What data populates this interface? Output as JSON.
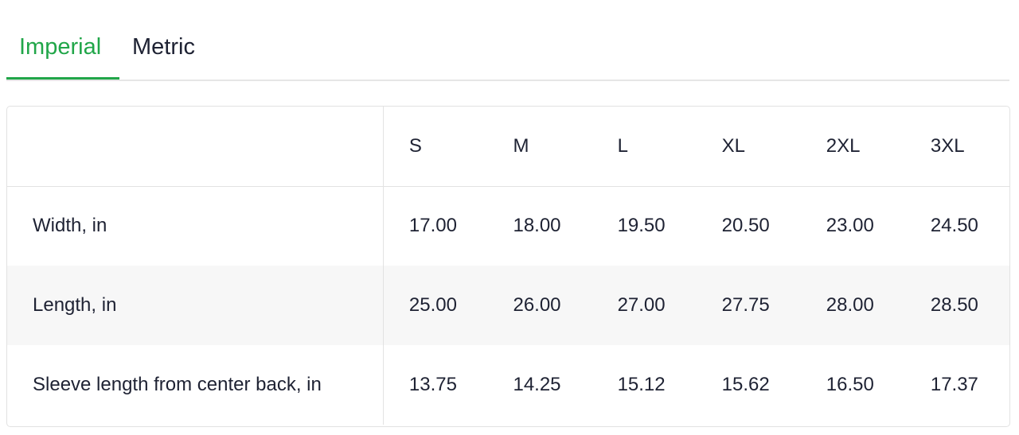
{
  "tabs": [
    {
      "label": "Imperial",
      "active": true
    },
    {
      "label": "Metric",
      "active": false
    }
  ],
  "accent_color": "#21a649",
  "table": {
    "headers": [
      "",
      "S",
      "M",
      "L",
      "XL",
      "2XL",
      "3XL"
    ],
    "rows": [
      {
        "label": "Width, in",
        "values": [
          "17.00",
          "18.00",
          "19.50",
          "20.50",
          "23.00",
          "24.50"
        ]
      },
      {
        "label": "Length, in",
        "values": [
          "25.00",
          "26.00",
          "27.00",
          "27.75",
          "28.00",
          "28.50"
        ]
      },
      {
        "label": "Sleeve length from center back, in",
        "values": [
          "13.75",
          "14.25",
          "15.12",
          "15.62",
          "16.50",
          "17.37"
        ]
      }
    ]
  }
}
